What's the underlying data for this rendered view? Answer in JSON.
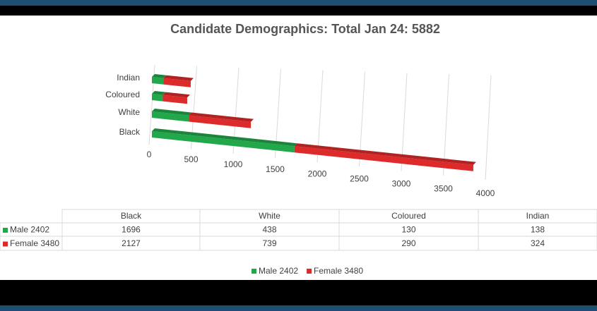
{
  "chart_data": {
    "type": "bar3d_horizontal_stacked",
    "title": "Candidate Demographics: Total Jan 24: 5882",
    "categories": [
      "Black",
      "White",
      "Coloured",
      "Indian"
    ],
    "series": [
      {
        "name": "Male 2402",
        "color": "#22a84a",
        "values": [
          1696,
          438,
          130,
          138
        ]
      },
      {
        "name": "Female 3480",
        "color": "#dd2b2b",
        "values": [
          2127,
          739,
          290,
          324
        ]
      }
    ],
    "xlim": [
      0,
      4000
    ],
    "xticks": [
      0,
      500,
      1000,
      1500,
      2000,
      2500,
      3000,
      3500,
      4000
    ],
    "grid": true,
    "legend": "bottom"
  }
}
